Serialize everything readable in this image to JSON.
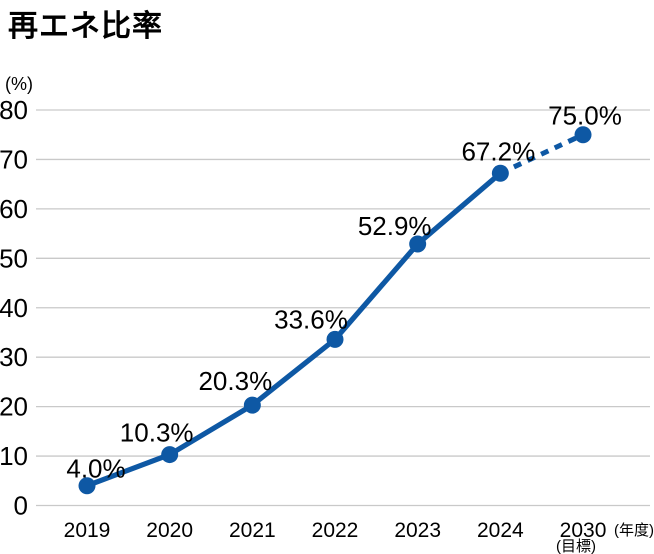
{
  "title": "再エネ比率",
  "chart_data": {
    "type": "line",
    "title": "再エネ比率",
    "y_unit_label": "(%)",
    "x_unit_label": "(年度)",
    "categories": [
      "2019",
      "2020",
      "2021",
      "2022",
      "2023",
      "2024",
      "2030"
    ],
    "category_note": {
      "index": 6,
      "text": "(目標)"
    },
    "values": [
      4.0,
      10.3,
      20.3,
      33.6,
      52.9,
      67.2,
      75.0
    ],
    "point_labels": [
      "4.0%",
      "10.3%",
      "20.3%",
      "33.6%",
      "52.9%",
      "67.2%",
      "75.0%"
    ],
    "ylim": [
      0,
      80
    ],
    "yticks": [
      0,
      10,
      20,
      30,
      40,
      50,
      60,
      70,
      80
    ],
    "grid": true,
    "legend": "none",
    "dashed_segment": {
      "from_index": 5,
      "to_index": 6
    },
    "colors": {
      "line": "#0e58a4",
      "marker": "#0e58a4",
      "grid": "#c9c9c9",
      "text": "#000000"
    }
  }
}
